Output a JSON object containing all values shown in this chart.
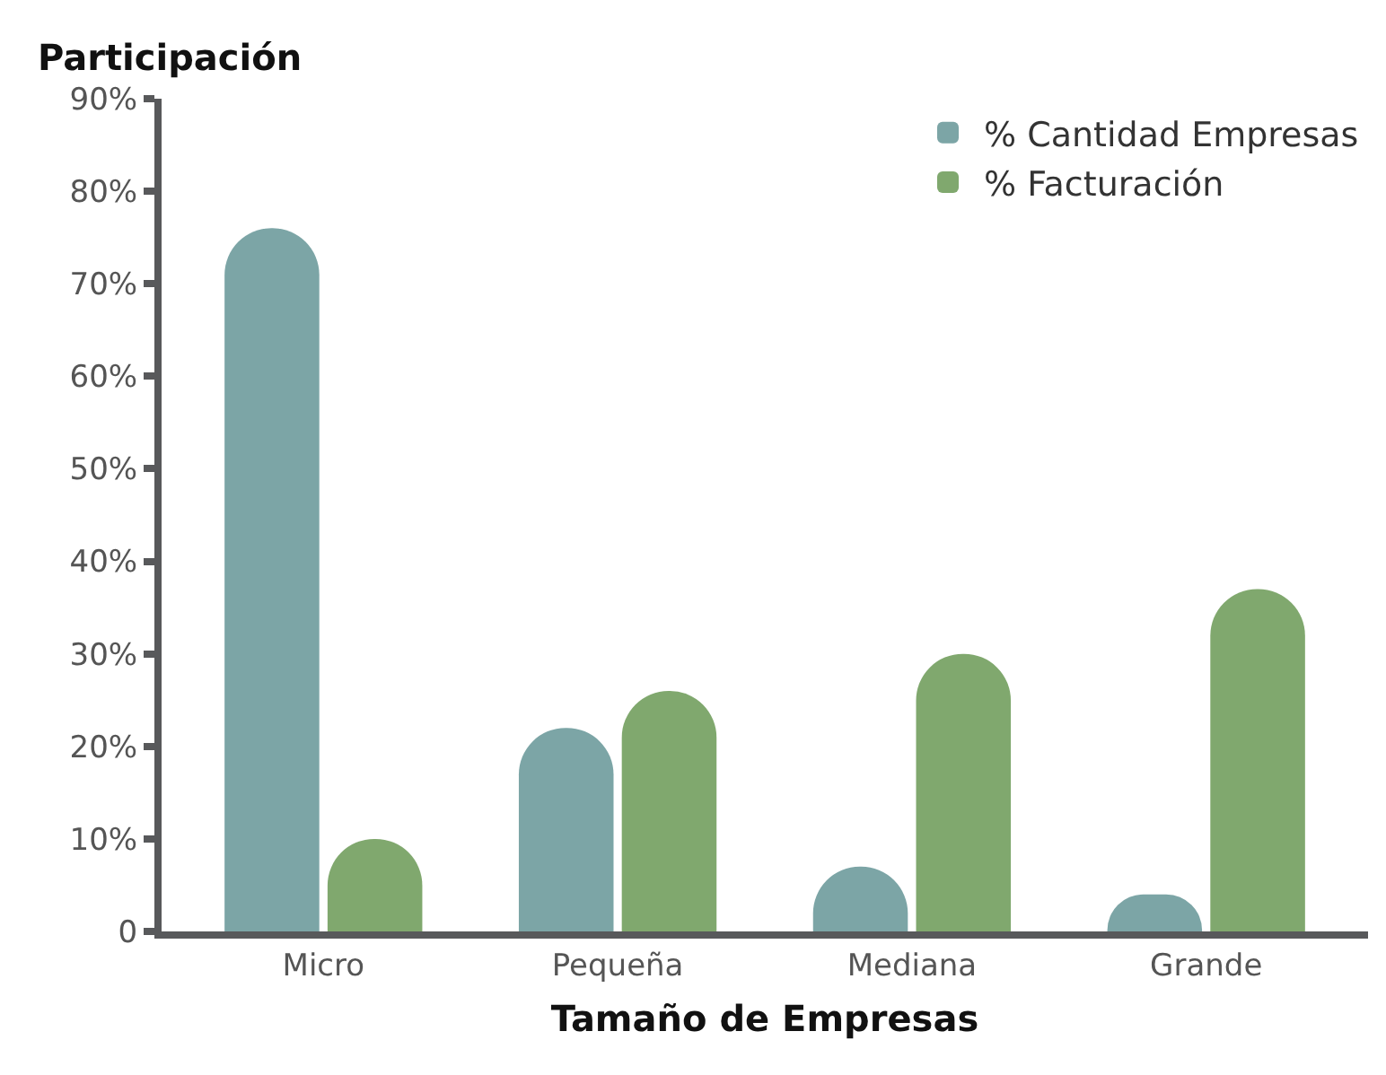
{
  "chart_data": {
    "type": "bar",
    "ylabel": "Participación",
    "xlabel": "Tamaño de Empresas",
    "categories": [
      "Micro",
      "Pequeña",
      "Mediana",
      "Grande"
    ],
    "series": [
      {
        "name": "% Cantidad Empresas",
        "color": "#7ca5a6",
        "values": [
          76,
          22,
          7,
          4
        ]
      },
      {
        "name": "% Facturación",
        "color": "#80a86e",
        "values": [
          10,
          26,
          30,
          37
        ]
      }
    ],
    "ylim": [
      0,
      90
    ],
    "yticks": [
      {
        "value": 0,
        "label": "0"
      },
      {
        "value": 10,
        "label": "10%"
      },
      {
        "value": 20,
        "label": "20%"
      },
      {
        "value": 30,
        "label": "30%"
      },
      {
        "value": 40,
        "label": "40%"
      },
      {
        "value": 50,
        "label": "50%"
      },
      {
        "value": 60,
        "label": "60%"
      },
      {
        "value": 70,
        "label": "70%"
      },
      {
        "value": 80,
        "label": "80%"
      },
      {
        "value": 90,
        "label": "90%"
      }
    ],
    "grid": false,
    "legend": "top right"
  }
}
